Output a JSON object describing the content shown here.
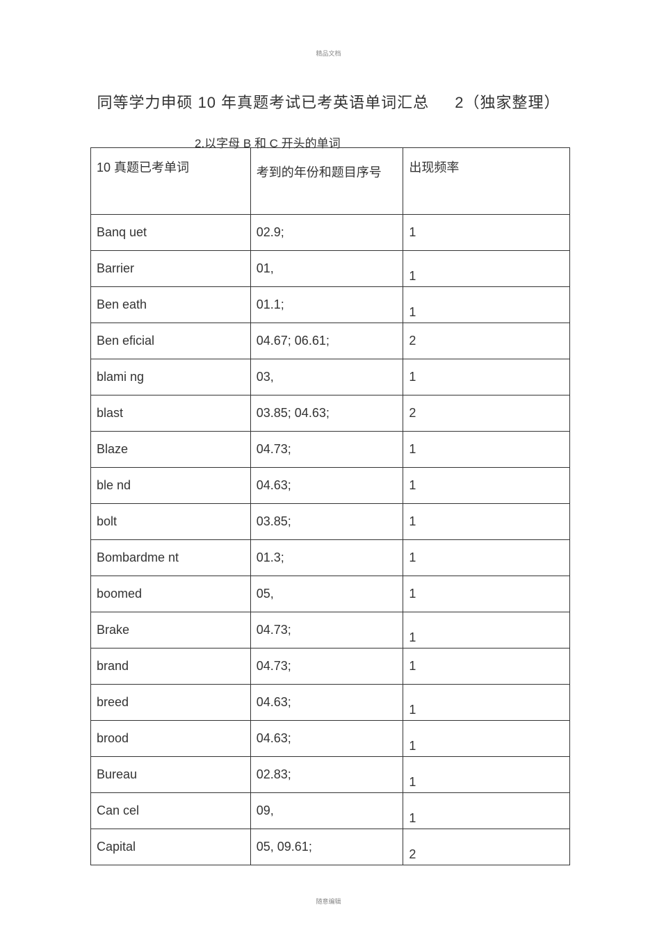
{
  "header_label": "精品文档",
  "footer_label": "随意编辑",
  "title_main": "同等学力申硕 10 年真题考试已考英语单词汇总",
  "title_suffix": "2（独家整理）",
  "subtitle": "2.以字母 B 和 C 开头的单词",
  "columns": {
    "word": "10 真题已考单词",
    "year": "考到的年份和题目序号",
    "freq": "出现频率"
  },
  "rows": [
    {
      "word": "Banq uet",
      "year": "02.9;",
      "freq": "1",
      "freq_align": "mid"
    },
    {
      "word": "Barrier",
      "year": "01,",
      "freq": "1",
      "freq_align": "bottom"
    },
    {
      "word": "Ben eath",
      "year": "01.1;",
      "freq": "1",
      "freq_align": "bottom"
    },
    {
      "word": "Ben eficial",
      "year": "04.67; 06.61;",
      "freq": "2",
      "freq_align": "mid"
    },
    {
      "word": "blami ng",
      "year": "03,",
      "freq": "1",
      "freq_align": "mid"
    },
    {
      "word": "blast",
      "year": "03.85; 04.63;",
      "freq": "2",
      "freq_align": "mid"
    },
    {
      "word": "Blaze",
      "year": "04.73;",
      "freq": "1",
      "freq_align": "mid"
    },
    {
      "word": "ble nd",
      "year": "04.63;",
      "freq": "1",
      "freq_align": "mid"
    },
    {
      "word": "bolt",
      "year": "03.85;",
      "freq": "1",
      "freq_align": "mid"
    },
    {
      "word": "Bombardme nt",
      "year": "01.3;",
      "freq": "1",
      "freq_align": "mid"
    },
    {
      "word": "boomed",
      "year": "05,",
      "freq": "1",
      "freq_align": "mid"
    },
    {
      "word": "Brake",
      "year": "04.73;",
      "freq": "1",
      "freq_align": "bottom"
    },
    {
      "word": "brand",
      "year": "04.73;",
      "freq": "1",
      "freq_align": "mid"
    },
    {
      "word": "breed",
      "year": "04.63;",
      "freq": "1",
      "freq_align": "bottom"
    },
    {
      "word": "brood",
      "year": "04.63;",
      "freq": "1",
      "freq_align": "bottom"
    },
    {
      "word": "Bureau",
      "year": "02.83;",
      "freq": "1",
      "freq_align": "bottom"
    },
    {
      "word": "Can cel",
      "year": "09,",
      "freq": "1",
      "freq_align": "bottom"
    },
    {
      "word": "Capital",
      "year": "05, 09.61;",
      "freq": "2",
      "freq_align": "bottom"
    }
  ],
  "colors": {
    "text": "#333333",
    "border": "#333333",
    "bg": "#ffffff",
    "faint": "#888888"
  }
}
